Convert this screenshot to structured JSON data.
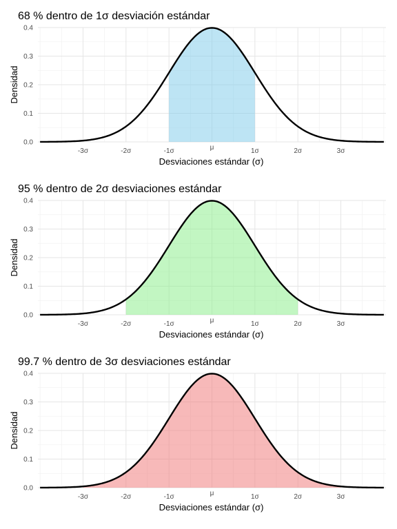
{
  "chart_data": [
    {
      "type": "area",
      "title": "68 %  dentro de 1σ desviación estándar",
      "xlabel": "Desviaciones estándar (σ)",
      "ylabel": "Densidad",
      "xlim": [
        -4.05,
        4.05
      ],
      "ylim": [
        0,
        0.4
      ],
      "x_ticks": [
        -3,
        -2,
        -1,
        0,
        1,
        2,
        3
      ],
      "x_tick_labels": [
        "-3σ",
        "-2σ",
        "-1σ",
        "μ",
        "1σ",
        "2σ",
        "3σ"
      ],
      "y_ticks": [
        0,
        0.1,
        0.2,
        0.3,
        0.4
      ],
      "y_tick_labels": [
        "0.0",
        "0.1",
        "0.2",
        "0.3",
        "0.4"
      ],
      "grid": true,
      "legend": "none",
      "shaded_range": [
        -1,
        1
      ],
      "fill_color": "#87CEEB",
      "line_color": "#000000",
      "series": [
        {
          "x": [
            -4,
            -3.5,
            -3,
            -2.5,
            -2,
            -1.5,
            -1,
            -0.5,
            0,
            0.5,
            1,
            1.5,
            2,
            2.5,
            3,
            3.5,
            4
          ],
          "values": [
            0.0001,
            0.0009,
            0.0044,
            0.0175,
            0.054,
            0.1295,
            0.242,
            0.3521,
            0.3989,
            0.3521,
            0.242,
            0.1295,
            0.054,
            0.0175,
            0.0044,
            0.0009,
            0.0001
          ]
        }
      ]
    },
    {
      "type": "area",
      "title": "95 %  dentro de 2σ desviaciones estándar",
      "xlabel": "Desviaciones estándar (σ)",
      "ylabel": "Densidad",
      "xlim": [
        -4.05,
        4.05
      ],
      "ylim": [
        0,
        0.4
      ],
      "x_ticks": [
        -3,
        -2,
        -1,
        0,
        1,
        2,
        3
      ],
      "x_tick_labels": [
        "-3σ",
        "-2σ",
        "-1σ",
        "μ",
        "1σ",
        "2σ",
        "3σ"
      ],
      "y_ticks": [
        0,
        0.1,
        0.2,
        0.3,
        0.4
      ],
      "y_tick_labels": [
        "0.0",
        "0.1",
        "0.2",
        "0.3",
        "0.4"
      ],
      "grid": true,
      "legend": "none",
      "shaded_range": [
        -2,
        2
      ],
      "fill_color": "#90EE90",
      "line_color": "#000000",
      "series": [
        {
          "x": [
            -4,
            -3.5,
            -3,
            -2.5,
            -2,
            -1.5,
            -1,
            -0.5,
            0,
            0.5,
            1,
            1.5,
            2,
            2.5,
            3,
            3.5,
            4
          ],
          "values": [
            0.0001,
            0.0009,
            0.0044,
            0.0175,
            0.054,
            0.1295,
            0.242,
            0.3521,
            0.3989,
            0.3521,
            0.242,
            0.1295,
            0.054,
            0.0175,
            0.0044,
            0.0009,
            0.0001
          ]
        }
      ]
    },
    {
      "type": "area",
      "title": "99.7 %  dentro de 3σ desviaciones estándar",
      "xlabel": "Desviaciones estándar (σ)",
      "ylabel": "Densidad",
      "xlim": [
        -4.05,
        4.05
      ],
      "ylim": [
        0,
        0.4
      ],
      "x_ticks": [
        -3,
        -2,
        -1,
        0,
        1,
        2,
        3
      ],
      "x_tick_labels": [
        "-3σ",
        "-2σ",
        "-1σ",
        "μ",
        "1σ",
        "2σ",
        "3σ"
      ],
      "y_ticks": [
        0,
        0.1,
        0.2,
        0.3,
        0.4
      ],
      "y_tick_labels": [
        "0.0",
        "0.1",
        "0.2",
        "0.3",
        "0.4"
      ],
      "grid": true,
      "legend": "none",
      "shaded_range": [
        -3,
        3
      ],
      "fill_color": "#F08080",
      "line_color": "#000000",
      "series": [
        {
          "x": [
            -4,
            -3.5,
            -3,
            -2.5,
            -2,
            -1.5,
            -1,
            -0.5,
            0,
            0.5,
            1,
            1.5,
            2,
            2.5,
            3,
            3.5,
            4
          ],
          "values": [
            0.0001,
            0.0009,
            0.0044,
            0.0175,
            0.054,
            0.1295,
            0.242,
            0.3521,
            0.3989,
            0.3521,
            0.242,
            0.1295,
            0.054,
            0.0175,
            0.0044,
            0.0009,
            0.0001
          ]
        }
      ]
    }
  ]
}
